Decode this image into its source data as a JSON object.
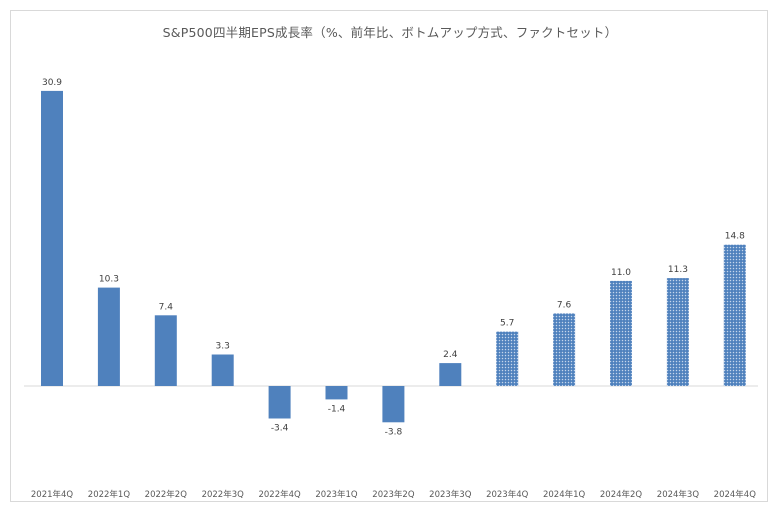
{
  "chart_data": {
    "type": "bar",
    "title": "S&P500四半期EPS成長率（%、前年比、ボトムアップ方式、ファクトセット）",
    "xlabel": "",
    "ylabel": "",
    "categories": [
      "2021年4Q",
      "2022年1Q",
      "2022年2Q",
      "2022年3Q",
      "2022年4Q",
      "2023年1Q",
      "2023年2Q",
      "2023年3Q",
      "2023年4Q",
      "2024年1Q",
      "2024年2Q",
      "2024年3Q",
      "2024年4Q"
    ],
    "values": [
      30.9,
      10.3,
      7.4,
      3.3,
      -3.4,
      -1.4,
      -3.8,
      2.4,
      5.7,
      7.6,
      11.0,
      11.3,
      14.8
    ],
    "value_labels": [
      "30.9",
      "10.3",
      "7.4",
      "3.3",
      "-3.4",
      "-1.4",
      "-3.8",
      "2.4",
      "5.7",
      "7.6",
      "11.0",
      "11.3",
      "14.8"
    ],
    "bar_style": [
      "solid",
      "solid",
      "solid",
      "solid",
      "solid",
      "solid",
      "solid",
      "solid",
      "dotted",
      "dotted",
      "dotted",
      "dotted",
      "dotted"
    ],
    "ylim": [
      -10,
      35
    ],
    "grid": false,
    "legend": "none",
    "colors": {
      "bar": "#4f81bd",
      "bar_dotted_bg": "#4f81bd",
      "bar_dotted_dot": "#c6d6ec",
      "axis": "#d9d9d9"
    }
  }
}
